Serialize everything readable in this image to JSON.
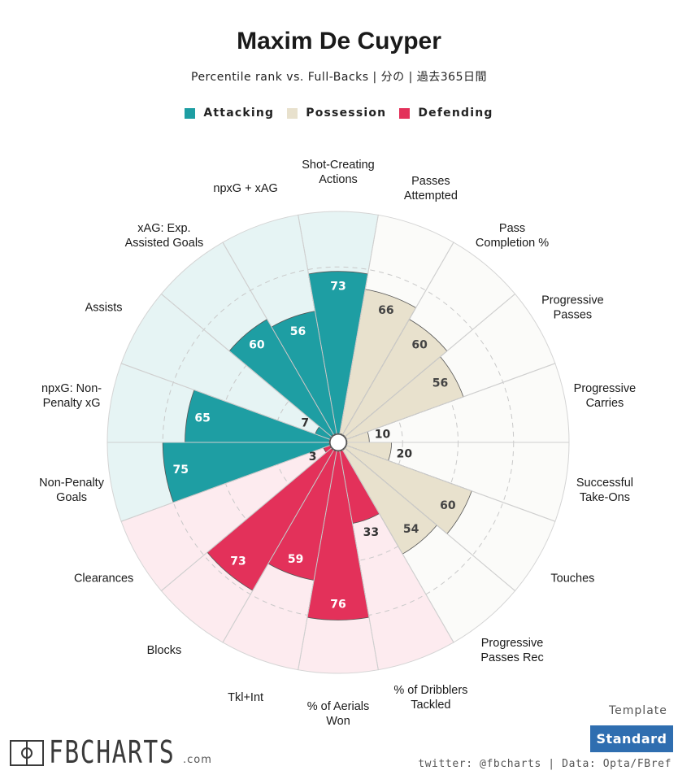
{
  "header": {
    "title": "Maxim De Cuyper",
    "subtitle": "Percentile rank vs. Full-Backs | 分の | 過去365日間"
  },
  "legend": [
    {
      "label": "Attacking",
      "color": "#1e9ea3"
    },
    {
      "label": "Possession",
      "color": "#e8e1cd"
    },
    {
      "label": "Defending",
      "color": "#e3315a"
    }
  ],
  "chart_data": {
    "type": "polar-bar",
    "title": "Maxim De Cuyper",
    "subtitle": "Percentile rank vs. Full-Backs | 分の | 過去365日間",
    "scale": [
      0,
      100
    ],
    "groups": {
      "Attacking": {
        "bar": "#1e9ea3",
        "background": "#e6f4f4"
      },
      "Possession": {
        "bar": "#e8e1cd",
        "background": "#fbfbf9"
      },
      "Defending": {
        "bar": "#e3315a",
        "background": "#fdebef"
      }
    },
    "categories": [
      {
        "label": "Shot-Creating\nActions",
        "value": 73,
        "group": "Attacking"
      },
      {
        "label": "Passes\nAttempted",
        "value": 66,
        "group": "Possession"
      },
      {
        "label": "Pass\nCompletion %",
        "value": 60,
        "group": "Possession"
      },
      {
        "label": "Progressive\nPasses",
        "value": 56,
        "group": "Possession"
      },
      {
        "label": "Progressive\nCarries",
        "value": 10,
        "group": "Possession"
      },
      {
        "label": "Successful\nTake-Ons",
        "value": 20,
        "group": "Possession"
      },
      {
        "label": "Touches",
        "value": 60,
        "group": "Possession"
      },
      {
        "label": "Progressive\nPasses Rec",
        "value": 54,
        "group": "Possession"
      },
      {
        "label": "% of Dribblers\nTackled",
        "value": 33,
        "group": "Defending"
      },
      {
        "label": "% of Aerials\nWon",
        "value": 76,
        "group": "Defending"
      },
      {
        "label": "Tkl+Int",
        "value": 59,
        "group": "Defending"
      },
      {
        "label": "Blocks",
        "value": 73,
        "group": "Defending"
      },
      {
        "label": "Clearances",
        "value": 3,
        "group": "Defending"
      },
      {
        "label": "Non-Penalty\nGoals",
        "value": 75,
        "group": "Attacking"
      },
      {
        "label": "npxG: Non-\nPenalty xG",
        "value": 65,
        "group": "Attacking"
      },
      {
        "label": "Assists",
        "value": 7,
        "group": "Attacking"
      },
      {
        "label": "xAG: Exp.\nAssisted Goals",
        "value": 60,
        "group": "Attacking"
      },
      {
        "label": "npxG + xAG",
        "value": 56,
        "group": "Attacking"
      }
    ]
  },
  "footer": {
    "template_label": "Template",
    "template_button": "Standard",
    "credits": "twitter: @fbcharts | Data: Opta/FBref",
    "logo_text": "FBCHARTS",
    "logo_suffix": ".com"
  }
}
